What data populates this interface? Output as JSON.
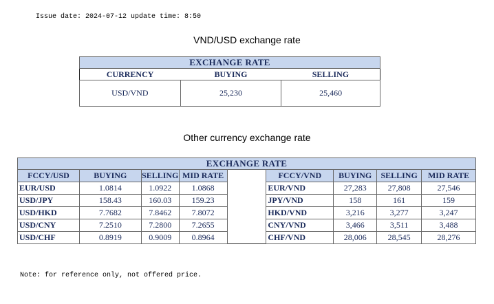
{
  "issue_line": "Issue date: 2024-07-12 update time: 8:50",
  "section1": {
    "heading": "VND/USD exchange rate",
    "title": "EXCHANGE RATE",
    "columns": [
      "CURRENCY",
      "BUYING",
      "SELLING"
    ],
    "row": [
      "USD/VND",
      "25,230",
      "25,460"
    ]
  },
  "section2": {
    "heading": "Other currency exchange rate",
    "title": "EXCHANGE  RATE",
    "left_columns": [
      "FCCY/USD",
      "BUYING",
      "SELLING",
      "MID RATE"
    ],
    "right_columns": [
      "FCCY/VND",
      "BUYING",
      "SELLING",
      "MID RATE"
    ],
    "left_rows": [
      [
        "EUR/USD",
        "1.0814",
        "1.0922",
        "1.0868"
      ],
      [
        "USD/JPY",
        "158.43",
        "160.03",
        "159.23"
      ],
      [
        "USD/HKD",
        "7.7682",
        "7.8462",
        "7.8072"
      ],
      [
        "USD/CNY",
        "7.2510",
        "7.2800",
        "7.2655"
      ],
      [
        "USD/CHF",
        "0.8919",
        "0.9009",
        "0.8964"
      ]
    ],
    "right_rows": [
      [
        "EUR/VND",
        "27,283",
        "27,808",
        "27,546"
      ],
      [
        "JPY/VND",
        "158",
        "161",
        "159"
      ],
      [
        "HKD/VND",
        "3,216",
        "3,277",
        "3,247"
      ],
      [
        "CNY/VND",
        "3,466",
        "3,511",
        "3,488"
      ],
      [
        "CHF/VND",
        "28,006",
        "28,545",
        "28,276"
      ]
    ]
  },
  "note": "Note: for reference only, not offered price."
}
